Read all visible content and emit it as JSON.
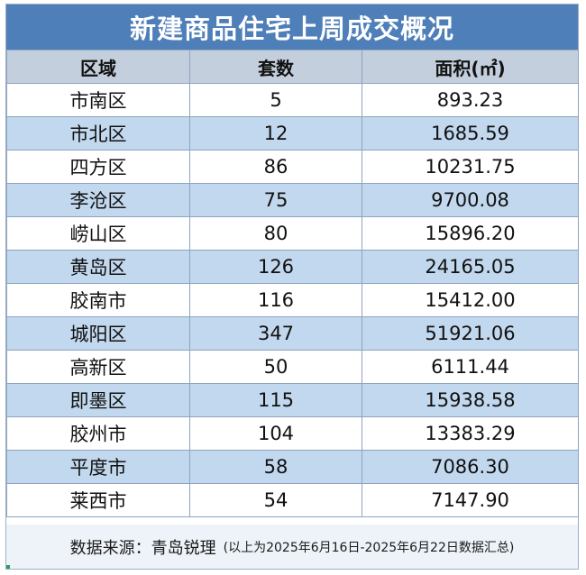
{
  "title": "新建商品住宅上周成交概况",
  "columns": [
    "区域",
    "套数",
    "面积(㎡)"
  ],
  "rows": [
    [
      "市南区",
      "5",
      "893.23"
    ],
    [
      "市北区",
      "12",
      "1685.59"
    ],
    [
      "四方区",
      "86",
      "10231.75"
    ],
    [
      "李沧区",
      "75",
      "9700.08"
    ],
    [
      "崂山区",
      "80",
      "15896.20"
    ],
    [
      "黄岛区",
      "126",
      "24165.05"
    ],
    [
      "胶南市",
      "116",
      "15412.00"
    ],
    [
      "城阳区",
      "347",
      "51921.06"
    ],
    [
      "高新区",
      "50",
      "6111.44"
    ],
    [
      "即墨区",
      "115",
      "15938.58"
    ],
    [
      "胶州市",
      "104",
      "13383.29"
    ],
    [
      "平度市",
      "58",
      "7086.30"
    ],
    [
      "莱西市",
      "54",
      "7147.90"
    ]
  ],
  "footer": {
    "source": "数据来源：青岛锐理",
    "note": "(以上为2025年6月16日-2025年6月22日数据汇总)"
  }
}
